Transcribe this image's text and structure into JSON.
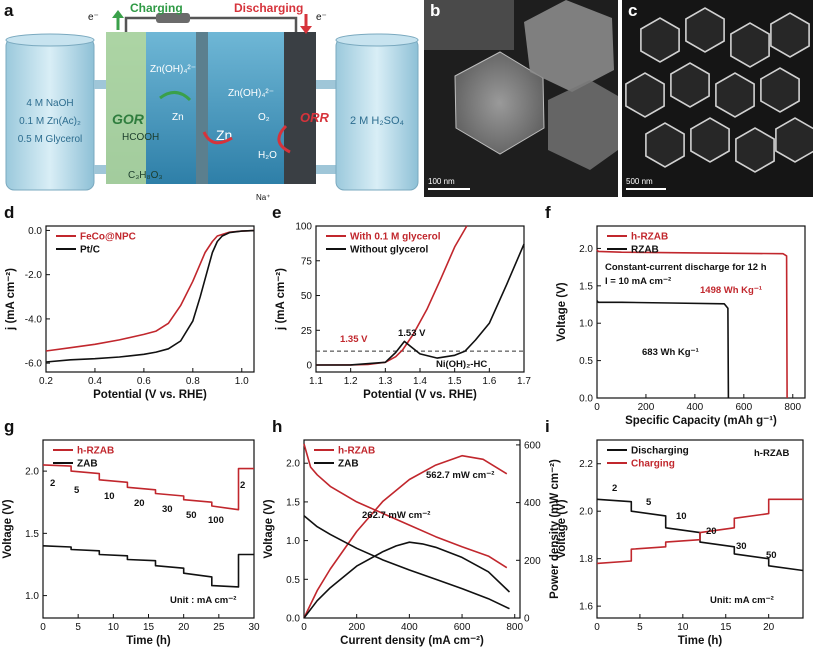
{
  "figure": {
    "panel_labels": [
      "a",
      "b",
      "c",
      "d",
      "e",
      "f",
      "g",
      "h",
      "i"
    ],
    "colors": {
      "red": "#c1272d",
      "black": "#111111"
    }
  },
  "schematic": {
    "charging_label": "Charging",
    "discharging_label": "Discharging",
    "left_electrolyte": [
      "4 M NaOH",
      "0.1 M Zn(Ac)₂",
      "0.5 M Glycerol"
    ],
    "right_electrolyte": "2 M H₂SO₄",
    "gor": "GOR",
    "orr": "ORR",
    "species": [
      "e⁻",
      "e⁻",
      "Zn(OH)₄²⁻",
      "Zn",
      "HCOOH",
      "C₃H₈O₃",
      "Zn",
      "Zn(OH)₄²⁻",
      "O₂",
      "H₂O",
      "Na⁺"
    ]
  },
  "micrographs": {
    "b_scale": "100 nm",
    "c_scale": "500 nm"
  },
  "chart_data": [
    {
      "panel": "d",
      "type": "line",
      "xlabel": "Potential (V vs. RHE)",
      "ylabel": "j (mA cm⁻²)",
      "xlim": [
        0.2,
        1.05
      ],
      "ylim": [
        -6.4,
        0.2
      ],
      "xticks": [
        "0.2",
        "0.4",
        "0.6",
        "0.8",
        "1.0"
      ],
      "xtick_values": [
        0.2,
        0.4,
        0.6,
        0.8,
        1.0
      ],
      "yticks": [
        "0.0",
        "-2.0",
        "-4.0",
        "-6.0"
      ],
      "ytick_values": [
        0,
        -2,
        -4,
        -6
      ],
      "legend_position": "top-left",
      "series": [
        {
          "name": "FeCo@NPC",
          "color": "#c1272d",
          "x": [
            0.2,
            0.3,
            0.4,
            0.5,
            0.6,
            0.65,
            0.7,
            0.75,
            0.8,
            0.85,
            0.88,
            0.9,
            0.95,
            1.0,
            1.05
          ],
          "y": [
            -5.45,
            -5.3,
            -5.15,
            -4.95,
            -4.7,
            -4.55,
            -4.2,
            -3.4,
            -2.3,
            -1.0,
            -0.5,
            -0.25,
            -0.08,
            -0.03,
            -0.01
          ]
        },
        {
          "name": "Pt/C",
          "color": "#111111",
          "x": [
            0.2,
            0.3,
            0.4,
            0.5,
            0.6,
            0.65,
            0.7,
            0.75,
            0.8,
            0.83,
            0.86,
            0.88,
            0.9,
            0.92,
            0.95,
            1.0,
            1.05
          ],
          "y": [
            -5.95,
            -5.85,
            -5.8,
            -5.72,
            -5.6,
            -5.5,
            -5.35,
            -5.0,
            -4.1,
            -3.0,
            -1.8,
            -1.0,
            -0.5,
            -0.25,
            -0.1,
            -0.03,
            -0.01
          ]
        }
      ]
    },
    {
      "panel": "e",
      "type": "line",
      "xlabel": "Potential (V vs. RHE)",
      "ylabel": "j (mA cm⁻²)",
      "xlim": [
        1.1,
        1.7
      ],
      "ylim": [
        -5,
        100
      ],
      "xticks": [
        "1.1",
        "1.2",
        "1.3",
        "1.4",
        "1.5",
        "1.6",
        "1.7"
      ],
      "xtick_values": [
        1.1,
        1.2,
        1.3,
        1.4,
        1.5,
        1.6,
        1.7
      ],
      "yticks": [
        "0",
        "25",
        "50",
        "75",
        "100"
      ],
      "ytick_values": [
        0,
        25,
        50,
        75,
        100
      ],
      "legend_position": "top-left",
      "reference_line_y": 10,
      "annotations": [
        "1.35 V",
        "1.53 V",
        "Ni(OH)₂-HC"
      ],
      "series": [
        {
          "name": "With 0.1 M glycerol",
          "color": "#c1272d",
          "x": [
            1.1,
            1.2,
            1.25,
            1.3,
            1.33,
            1.35,
            1.38,
            1.42,
            1.46,
            1.5,
            1.535
          ],
          "y": [
            0,
            0.1,
            0.4,
            2,
            6,
            11,
            22,
            40,
            62,
            85,
            100
          ]
        },
        {
          "name": "Without glycerol",
          "color": "#111111",
          "x": [
            1.1,
            1.2,
            1.3,
            1.33,
            1.355,
            1.37,
            1.4,
            1.45,
            1.5,
            1.53,
            1.56,
            1.6,
            1.65,
            1.7
          ],
          "y": [
            0,
            0.1,
            2,
            9,
            17,
            14,
            8,
            5,
            7,
            10,
            18,
            30,
            58,
            87
          ]
        }
      ]
    },
    {
      "panel": "f",
      "type": "line",
      "xlabel": "Specific Capacity (mAh g⁻¹)",
      "ylabel": "Voltage (V)",
      "xlim": [
        0,
        850
      ],
      "ylim": [
        0,
        2.3
      ],
      "xticks": [
        "0",
        "200",
        "400",
        "600",
        "800"
      ],
      "xtick_values": [
        0,
        200,
        400,
        600,
        800
      ],
      "yticks": [
        "0.0",
        "0.5",
        "1.0",
        "1.5",
        "2.0"
      ],
      "ytick_values": [
        0,
        0.5,
        1.0,
        1.5,
        2.0
      ],
      "legend_position": "top-left",
      "annotations": [
        "Constant-current discharge for 12 h",
        "I = 10 mA cm⁻²",
        "1498 Wh Kg⁻¹",
        "683 Wh Kg⁻¹"
      ],
      "series": [
        {
          "name": "h-RZAB",
          "color": "#c1272d",
          "x": [
            0,
            5,
            100,
            400,
            760,
            775,
            777
          ],
          "y": [
            1.98,
            1.96,
            1.95,
            1.94,
            1.93,
            1.9,
            0
          ]
        },
        {
          "name": "RZAB",
          "color": "#111111",
          "x": [
            0,
            5,
            100,
            300,
            520,
            535,
            537
          ],
          "y": [
            1.3,
            1.28,
            1.28,
            1.27,
            1.26,
            1.2,
            0
          ]
        }
      ]
    },
    {
      "panel": "g",
      "type": "line",
      "xlabel": "Time (h)",
      "ylabel": "Voltage (V)",
      "xlim": [
        0,
        30
      ],
      "ylim": [
        0.82,
        2.25
      ],
      "xticks": [
        "0",
        "5",
        "10",
        "15",
        "20",
        "25",
        "30"
      ],
      "xtick_values": [
        0,
        5,
        10,
        15,
        20,
        25,
        30
      ],
      "yticks": [
        "1.0",
        "1.5",
        "2.0"
      ],
      "ytick_values": [
        1.0,
        1.5,
        2.0
      ],
      "legend_position": "top-left",
      "annotations": [
        "2",
        "5",
        "10",
        "20",
        "30",
        "50",
        "100",
        "2",
        "Unit : mA cm⁻²"
      ],
      "series": [
        {
          "name": "h-RZAB",
          "color": "#c1272d",
          "x": [
            0,
            4,
            4,
            8,
            8,
            12,
            12,
            16,
            16,
            20,
            20,
            24,
            24,
            27.8,
            27.8,
            30
          ],
          "y": [
            2.05,
            2.04,
            2.0,
            1.98,
            1.93,
            1.91,
            1.87,
            1.85,
            1.82,
            1.8,
            1.77,
            1.75,
            1.72,
            1.69,
            2.02,
            2.02
          ]
        },
        {
          "name": "ZAB",
          "color": "#111111",
          "x": [
            0,
            4,
            4,
            8,
            8,
            12,
            12,
            16,
            16,
            20,
            20,
            24,
            24,
            27.8,
            27.8,
            30
          ],
          "y": [
            1.4,
            1.39,
            1.37,
            1.36,
            1.33,
            1.32,
            1.29,
            1.28,
            1.24,
            1.22,
            1.18,
            1.15,
            1.08,
            1.07,
            1.33,
            1.33
          ]
        }
      ]
    },
    {
      "panel": "h",
      "type": "line",
      "xlabel": "Current density (mA cm⁻²)",
      "ylabel": "Voltage (V)",
      "y2label": "Power density (mW cm⁻²)",
      "xlim": [
        0,
        820
      ],
      "ylim": [
        0,
        2.3
      ],
      "y2lim": [
        0,
        617
      ],
      "xticks": [
        "0",
        "200",
        "400",
        "600",
        "800"
      ],
      "xtick_values": [
        0,
        200,
        400,
        600,
        800
      ],
      "yticks": [
        "0.0",
        "0.5",
        "1.0",
        "1.5",
        "2.0"
      ],
      "ytick_values": [
        0,
        0.5,
        1.0,
        1.5,
        2.0
      ],
      "y2ticks": [
        "0",
        "200",
        "400",
        "600"
      ],
      "y2tick_values": [
        0,
        200,
        400,
        600
      ],
      "legend_position": "top-left",
      "annotations": [
        "562.7 mW cm⁻²",
        "262.7 mW cm⁻²"
      ],
      "series": [
        {
          "name": "h-RZAB",
          "color": "#c1272d",
          "axis": "left",
          "x": [
            0,
            25,
            50,
            100,
            200,
            300,
            400,
            500,
            600,
            700,
            770
          ],
          "y": [
            2.25,
            1.95,
            1.85,
            1.7,
            1.5,
            1.35,
            1.2,
            1.05,
            0.92,
            0.8,
            0.65
          ]
        },
        {
          "name": "h-RZAB power",
          "color": "#c1272d",
          "axis": "right",
          "x": [
            0,
            50,
            100,
            200,
            300,
            400,
            500,
            600,
            680,
            770
          ],
          "y": [
            0,
            95,
            170,
            300,
            405,
            480,
            530,
            562.7,
            550,
            500
          ]
        },
        {
          "name": "ZAB",
          "color": "#111111",
          "axis": "left",
          "x": [
            0,
            50,
            100,
            200,
            300,
            400,
            500,
            600,
            700,
            780
          ],
          "y": [
            1.32,
            1.18,
            1.08,
            0.9,
            0.75,
            0.62,
            0.5,
            0.38,
            0.25,
            0.12
          ]
        },
        {
          "name": "ZAB power",
          "color": "#111111",
          "axis": "right",
          "x": [
            0,
            50,
            100,
            200,
            300,
            350,
            400,
            450,
            500,
            600,
            700,
            780
          ],
          "y": [
            0,
            60,
            105,
            180,
            230,
            250,
            262.7,
            257,
            245,
            210,
            160,
            90
          ]
        }
      ]
    },
    {
      "panel": "i",
      "type": "line",
      "xlabel": "Time (h)",
      "ylabel": "Voltage (V)",
      "xlim": [
        0,
        24
      ],
      "ylim": [
        1.55,
        2.3
      ],
      "xticks": [
        "0",
        "5",
        "10",
        "15",
        "20"
      ],
      "xtick_values": [
        0,
        5,
        10,
        15,
        20
      ],
      "yticks": [
        "1.6",
        "1.8",
        "2.0",
        "2.2"
      ],
      "ytick_values": [
        1.6,
        1.8,
        2.0,
        2.2
      ],
      "legend_position": "top-left",
      "annotations": [
        "h-RZAB",
        "2",
        "5",
        "10",
        "20",
        "30",
        "50",
        "Unit: mA cm⁻²"
      ],
      "series": [
        {
          "name": "Discharging",
          "color": "#111111",
          "x": [
            0,
            4,
            4,
            8,
            8,
            12,
            12,
            16,
            16,
            20,
            20,
            24
          ],
          "y": [
            2.05,
            2.04,
            2.0,
            1.98,
            1.93,
            1.91,
            1.87,
            1.85,
            1.82,
            1.8,
            1.77,
            1.75
          ]
        },
        {
          "name": "Charging",
          "color": "#c1272d",
          "x": [
            0,
            4,
            4,
            8,
            8,
            12,
            12,
            16,
            16,
            20,
            20,
            24
          ],
          "y": [
            1.78,
            1.79,
            1.84,
            1.85,
            1.87,
            1.88,
            1.91,
            1.93,
            1.97,
            1.99,
            2.05,
            2.05
          ]
        }
      ]
    }
  ]
}
